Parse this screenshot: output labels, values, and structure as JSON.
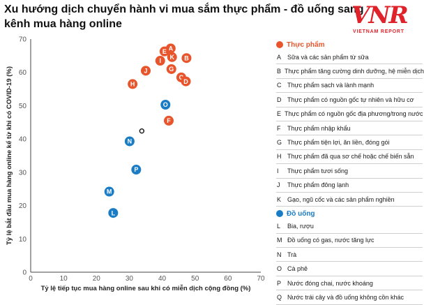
{
  "title": "Xu hướng dịch chuyển hành vi mua sắm thực phẩm - đồ uống sang kênh mua hàng online",
  "logo": {
    "mark": "VNR",
    "text": "VIETNAM REPORT"
  },
  "colors": {
    "food": "#e8552c",
    "drink": "#1a7cc4",
    "neutral": "#222222"
  },
  "legend": {
    "food_title": "Thực phẩm",
    "food_items": [
      {
        "code": "A",
        "label": "Sữa và các sản phẩm từ sữa"
      },
      {
        "code": "B",
        "label": "Thực phẩm tăng cường dinh dưỡng, hệ miễn dịch"
      },
      {
        "code": "C",
        "label": "Thực phẩm sạch và lành mạnh"
      },
      {
        "code": "D",
        "label": "Thực phẩm có nguồn gốc tự nhiên và hữu cơ"
      },
      {
        "code": "E",
        "label": "Thực phẩm có nguồn gốc địa phương/trong nước"
      },
      {
        "code": "F",
        "label": "Thực phẩm nhập khẩu"
      },
      {
        "code": "G",
        "label": "Thực phẩm tiện lợi, ăn liền, đóng gói"
      },
      {
        "code": "H",
        "label": "Thực phẩm đã qua sơ chế hoặc chế biến sẵn"
      },
      {
        "code": "I",
        "label": "Thực phẩm tươi sống"
      },
      {
        "code": "J",
        "label": "Thực phẩm đông lạnh"
      },
      {
        "code": "K",
        "label": "Gạo, ngũ cốc và các sản phẩm nghiền"
      }
    ],
    "drink_title": "Đồ uống",
    "drink_items": [
      {
        "code": "L",
        "label": "Bia, rượu"
      },
      {
        "code": "M",
        "label": "Đồ uống có gas, nước tăng lực"
      },
      {
        "code": "N",
        "label": "Trà"
      },
      {
        "code": "O",
        "label": "Cà phê"
      },
      {
        "code": "P",
        "label": "Nước đóng chai, nước khoáng"
      },
      {
        "code": "Q",
        "label": "Nước trái cây và đồ uống không cồn khác"
      }
    ]
  },
  "chart_data": {
    "type": "scatter",
    "xlabel": "Tỷ lệ tiếp tục mua hàng online sau khi có miễn dịch cộng đồng (%)",
    "ylabel": "Tỷ lệ bắt đầu mua hàng online kể từ khi có COVID-19 (%)",
    "xlim": [
      0,
      70
    ],
    "ylim": [
      0,
      70
    ],
    "xticks": [
      0,
      10,
      20,
      30,
      40,
      50,
      60,
      70
    ],
    "yticks": [
      0,
      10,
      20,
      30,
      40,
      50,
      60,
      70
    ],
    "series": [
      {
        "name": "Thực phẩm",
        "color": "#e8552c",
        "points": [
          {
            "label": "A",
            "x": 42.6,
            "y": 67.2
          },
          {
            "label": "B",
            "x": 47.4,
            "y": 64.3
          },
          {
            "label": "C",
            "x": 45.8,
            "y": 58.5
          },
          {
            "label": "D",
            "x": 47.2,
            "y": 57.3
          },
          {
            "label": "E",
            "x": 40.7,
            "y": 66.3
          },
          {
            "label": "F",
            "x": 42.0,
            "y": 45.5
          },
          {
            "label": "G",
            "x": 42.8,
            "y": 61.0
          },
          {
            "label": "H",
            "x": 31.0,
            "y": 56.5
          },
          {
            "label": "I",
            "x": 39.4,
            "y": 63.5
          },
          {
            "label": "J",
            "x": 35.0,
            "y": 60.5
          },
          {
            "label": "K",
            "x": 43.0,
            "y": 64.6
          }
        ]
      },
      {
        "name": "Đồ uống",
        "color": "#1a7cc4",
        "points": [
          {
            "label": "L",
            "x": 25.1,
            "y": 17.8
          },
          {
            "label": "M",
            "x": 23.9,
            "y": 24.2
          },
          {
            "label": "N",
            "x": 30.1,
            "y": 39.3
          },
          {
            "label": "O",
            "x": 41.0,
            "y": 50.3
          },
          {
            "label": "P",
            "x": 32.1,
            "y": 30.8
          },
          {
            "label": "Q",
            "x": 33.8,
            "y": 42.4
          }
        ]
      }
    ],
    "grid": false,
    "legend_position": "right"
  }
}
